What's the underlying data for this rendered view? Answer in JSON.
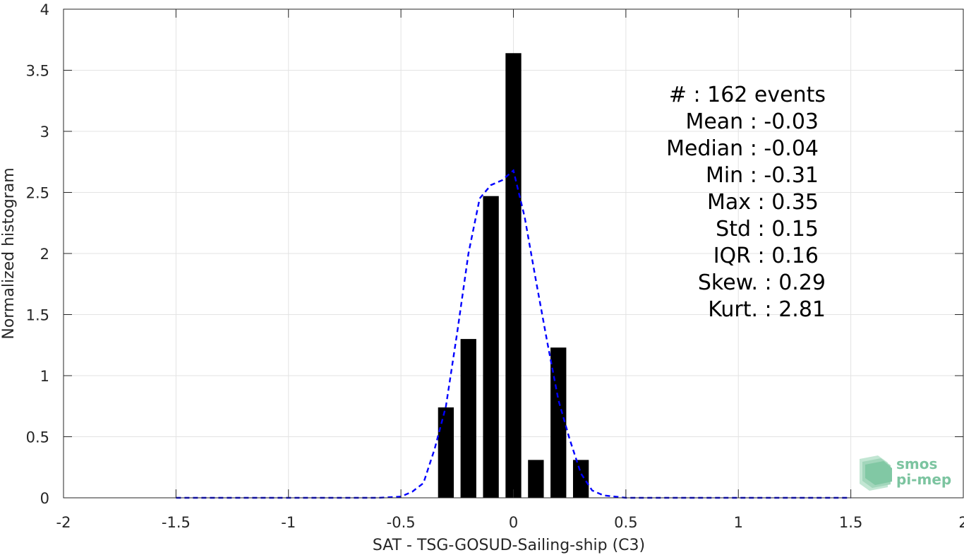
{
  "chart_data": {
    "type": "bar",
    "xlabel": "SAT - TSG-GOSUD-Sailing-ship (C3)",
    "ylabel": "Normalized histogram",
    "xlim": [
      -2,
      2
    ],
    "ylim": [
      0,
      4
    ],
    "xticks": [
      -2,
      -1.5,
      -1,
      -0.5,
      0,
      0.5,
      1,
      1.5,
      2
    ],
    "xtick_labels": [
      "-2",
      "-1.5",
      "-1",
      "-0.5",
      "0",
      "0.5",
      "1",
      "1.5",
      "2"
    ],
    "yticks": [
      0,
      0.5,
      1,
      1.5,
      2,
      2.5,
      3,
      3.5,
      4
    ],
    "ytick_labels": [
      "0",
      "0.5",
      "1",
      "1.5",
      "2",
      "2.5",
      "3",
      "3.5",
      "4"
    ],
    "grid": true,
    "bar_color": "#000000",
    "bars": {
      "centers": [
        -0.3,
        -0.2,
        -0.1,
        0.0,
        0.1,
        0.2,
        0.3
      ],
      "values": [
        0.74,
        1.3,
        2.47,
        3.64,
        0.31,
        1.23,
        0.31
      ],
      "width": 0.07
    },
    "fit_curve": {
      "style": "dashed",
      "color": "#0000ff",
      "x": [
        -1.5,
        -1.0,
        -0.6,
        -0.5,
        -0.45,
        -0.4,
        -0.35,
        -0.3,
        -0.25,
        -0.2,
        -0.15,
        -0.1,
        -0.05,
        0.0,
        0.05,
        0.1,
        0.15,
        0.2,
        0.25,
        0.3,
        0.35,
        0.4,
        0.5,
        1.0,
        1.5
      ],
      "y": [
        0.0,
        0.0,
        0.0,
        0.01,
        0.05,
        0.12,
        0.4,
        0.75,
        1.35,
        2.0,
        2.45,
        2.56,
        2.6,
        2.68,
        2.3,
        1.78,
        1.28,
        0.8,
        0.48,
        0.2,
        0.06,
        0.02,
        0.0,
        0.0,
        0.0
      ]
    },
    "stats": [
      "#  : 162 events",
      "Mean : -0.03",
      "Median : -0.04",
      "Min : -0.31",
      "Max : 0.35",
      "Std : 0.15",
      "IQR : 0.16",
      "Skew. : 0.29",
      "Kurt. : 2.81"
    ]
  },
  "logo": {
    "line1": "smos",
    "line2": "pi-mep",
    "color": "#7cc4a0"
  }
}
